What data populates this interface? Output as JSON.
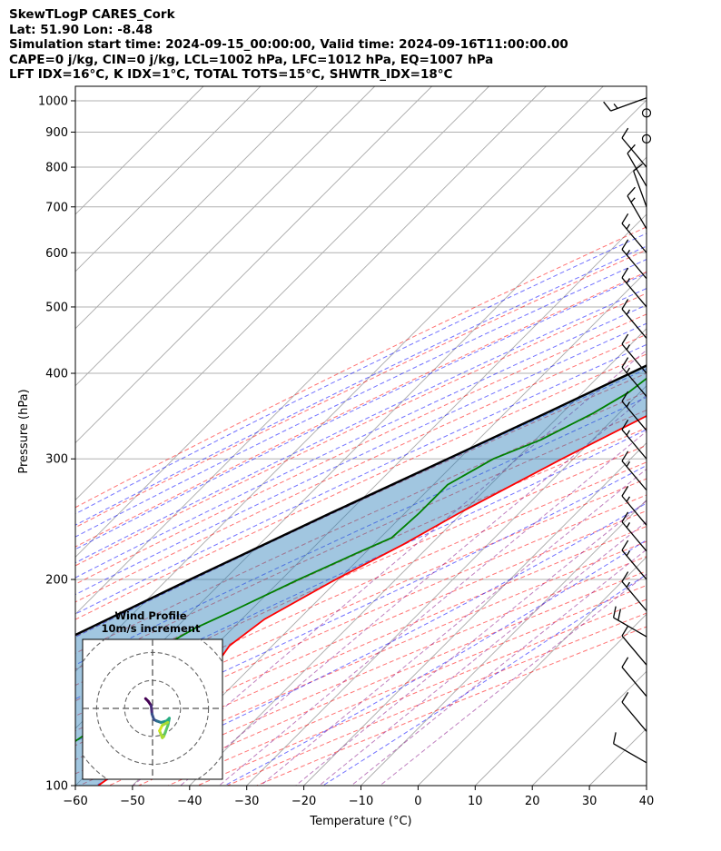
{
  "header": {
    "line1": "SkewTLogP CARES_Cork",
    "line2": "Lat: 51.90   Lon: -8.48",
    "line3": "Simulation start time: 2024-09-15_00:00:00, Valid time: 2024-09-16T11:00:00.00",
    "line4": "CAPE=0 j/kg, CIN=0 j/kg, LCL=1002 hPa, LFC=1012 hPa, EQ=1007 hPa",
    "line5": "LFT IDX=16°C, K IDX=1°C, TOTAL TOTS=15°C, SHWTR_IDX=18°C"
  },
  "chart_data": {
    "type": "skewt",
    "xlabel": "Temperature (°C)",
    "ylabel": "Pressure (hPa)",
    "xlim": [
      -60,
      40
    ],
    "ylim": [
      1050,
      100
    ],
    "x_ticks": [
      "−60",
      "−50",
      "−40",
      "−30",
      "−20",
      "−10",
      "0",
      "10",
      "20",
      "30",
      "40"
    ],
    "x_tick_values": [
      -60,
      -50,
      -40,
      -30,
      -20,
      -10,
      0,
      10,
      20,
      30,
      40
    ],
    "y_ticks": [
      "1000",
      "900",
      "800",
      "700",
      "600",
      "500",
      "400",
      "300",
      "200",
      "100"
    ],
    "y_tick_values": [
      1000,
      900,
      800,
      700,
      600,
      500,
      400,
      300,
      200,
      100
    ],
    "grid": true,
    "series": [
      {
        "role": "temperature",
        "color": "#ff0000",
        "points": [
          {
            "p": 1010,
            "t": 13.0
          },
          {
            "p": 1000,
            "t": 13.3
          },
          {
            "p": 975,
            "t": 14.8
          },
          {
            "p": 950,
            "t": 15.8
          },
          {
            "p": 925,
            "t": 16.6
          },
          {
            "p": 900,
            "t": 17.0
          },
          {
            "p": 850,
            "t": 17.2
          },
          {
            "p": 800,
            "t": 16.6
          },
          {
            "p": 750,
            "t": 15.0
          },
          {
            "p": 700,
            "t": 12.3
          },
          {
            "p": 650,
            "t": 8.8
          },
          {
            "p": 600,
            "t": 4.8
          },
          {
            "p": 550,
            "t": 0.5
          },
          {
            "p": 500,
            "t": -4.3
          },
          {
            "p": 450,
            "t": -10.0
          },
          {
            "p": 400,
            "t": -16.5
          },
          {
            "p": 350,
            "t": -24.2
          },
          {
            "p": 300,
            "t": -32.0
          },
          {
            "p": 250,
            "t": -40.5
          },
          {
            "p": 225,
            "t": -44.8
          },
          {
            "p": 200,
            "t": -50.5
          },
          {
            "p": 175,
            "t": -56.0
          },
          {
            "p": 160,
            "t": -57.5
          },
          {
            "p": 150,
            "t": -56.5
          },
          {
            "p": 140,
            "t": -58.0
          },
          {
            "p": 130,
            "t": -56.5
          },
          {
            "p": 120,
            "t": -55.0
          },
          {
            "p": 110,
            "t": -54.0
          },
          {
            "p": 100,
            "t": -56.0
          }
        ]
      },
      {
        "role": "dewpoint",
        "color": "#008000",
        "points": [
          {
            "p": 1010,
            "t": 12.5
          },
          {
            "p": 1000,
            "t": 10.5
          },
          {
            "p": 975,
            "t": 7.5
          },
          {
            "p": 950,
            "t": 5.8
          },
          {
            "p": 925,
            "t": 4.8
          },
          {
            "p": 900,
            "t": 1.0
          },
          {
            "p": 850,
            "t": -7.2
          },
          {
            "p": 800,
            "t": -6.0
          },
          {
            "p": 775,
            "t": 2.0
          },
          {
            "p": 750,
            "t": 9.0
          },
          {
            "p": 700,
            "t": 8.0
          },
          {
            "p": 670,
            "t": 7.5
          },
          {
            "p": 600,
            "t": -8.0
          },
          {
            "p": 560,
            "t": -15.0
          },
          {
            "p": 500,
            "t": -21.0
          },
          {
            "p": 450,
            "t": -26.5
          },
          {
            "p": 400,
            "t": -31.0
          },
          {
            "p": 375,
            "t": -32.0
          },
          {
            "p": 350,
            "t": -34.5
          },
          {
            "p": 320,
            "t": -39.0
          },
          {
            "p": 300,
            "t": -44.0
          },
          {
            "p": 275,
            "t": -47.5
          },
          {
            "p": 250,
            "t": -47.5
          },
          {
            "p": 230,
            "t": -48.0
          },
          {
            "p": 220,
            "t": -51.0
          },
          {
            "p": 200,
            "t": -57.0
          },
          {
            "p": 180,
            "t": -63.0
          },
          {
            "p": 170,
            "t": -66.5
          },
          {
            "p": 160,
            "t": -69.0
          },
          {
            "p": 150,
            "t": -69.0
          },
          {
            "p": 140,
            "t": -68.0
          },
          {
            "p": 130,
            "t": -67.0
          },
          {
            "p": 125,
            "t": -66.0
          },
          {
            "p": 115,
            "t": -68.0
          },
          {
            "p": 100,
            "t": -72.0
          }
        ]
      },
      {
        "role": "parcel",
        "color": "#000000",
        "points": [
          {
            "p": 1010,
            "t": 13.0
          },
          {
            "p": 1000,
            "t": 12.3
          },
          {
            "p": 950,
            "t": 10.0
          },
          {
            "p": 900,
            "t": 7.5
          },
          {
            "p": 850,
            "t": 4.8
          },
          {
            "p": 800,
            "t": 2.0
          },
          {
            "p": 750,
            "t": -1.2
          },
          {
            "p": 700,
            "t": -4.6
          },
          {
            "p": 650,
            "t": -8.4
          },
          {
            "p": 600,
            "t": -12.5
          },
          {
            "p": 550,
            "t": -17.2
          },
          {
            "p": 500,
            "t": -22.4
          },
          {
            "p": 450,
            "t": -28.3
          },
          {
            "p": 400,
            "t": -35.0
          },
          {
            "p": 350,
            "t": -42.8
          },
          {
            "p": 300,
            "t": -52.0
          },
          {
            "p": 250,
            "t": -63.0
          },
          {
            "p": 200,
            "t": -76.0
          },
          {
            "p": 150,
            "t": -92.0
          },
          {
            "p": 100,
            "t": -114.0
          }
        ]
      }
    ],
    "barbs": [
      {
        "p": 1010,
        "speed_kt": 15,
        "dir": 250
      },
      {
        "p": 960,
        "speed_kt": 0,
        "dir": 0
      },
      {
        "p": 880,
        "speed_kt": 0,
        "dir": 0
      },
      {
        "p": 800,
        "speed_kt": 10,
        "dir": 320
      },
      {
        "p": 750,
        "speed_kt": 10,
        "dir": 330
      },
      {
        "p": 700,
        "speed_kt": 10,
        "dir": 340
      },
      {
        "p": 650,
        "speed_kt": 15,
        "dir": 330
      },
      {
        "p": 600,
        "speed_kt": 15,
        "dir": 320
      },
      {
        "p": 550,
        "speed_kt": 15,
        "dir": 320
      },
      {
        "p": 500,
        "speed_kt": 15,
        "dir": 320
      },
      {
        "p": 450,
        "speed_kt": 15,
        "dir": 320
      },
      {
        "p": 400,
        "speed_kt": 15,
        "dir": 320
      },
      {
        "p": 370,
        "speed_kt": 15,
        "dir": 320
      },
      {
        "p": 330,
        "speed_kt": 15,
        "dir": 320
      },
      {
        "p": 300,
        "speed_kt": 15,
        "dir": 320
      },
      {
        "p": 270,
        "speed_kt": 15,
        "dir": 320
      },
      {
        "p": 240,
        "speed_kt": 15,
        "dir": 320
      },
      {
        "p": 220,
        "speed_kt": 15,
        "dir": 320
      },
      {
        "p": 200,
        "speed_kt": 15,
        "dir": 320
      },
      {
        "p": 180,
        "speed_kt": 15,
        "dir": 320
      },
      {
        "p": 165,
        "speed_kt": 20,
        "dir": 300
      },
      {
        "p": 150,
        "speed_kt": 10,
        "dir": 320
      },
      {
        "p": 135,
        "speed_kt": 10,
        "dir": 320
      },
      {
        "p": 120,
        "speed_kt": 10,
        "dir": 320
      },
      {
        "p": 108,
        "speed_kt": 10,
        "dir": 300
      }
    ],
    "hodograph": {
      "title_line1": "Wind Profile",
      "title_line2": "10m/s increment",
      "rings_ms": [
        10,
        20,
        30
      ],
      "range_ms": 25,
      "points": [
        {
          "u": -2.5,
          "v": 3.5
        },
        {
          "u": -1.5,
          "v": 2.5
        },
        {
          "u": -0.5,
          "v": 1.0
        },
        {
          "u": -0.2,
          "v": -2.0
        },
        {
          "u": 0.5,
          "v": -4.0
        },
        {
          "u": 1.5,
          "v": -4.5
        },
        {
          "u": 3.0,
          "v": -5.0
        },
        {
          "u": 5.0,
          "v": -4.5
        },
        {
          "u": 6.0,
          "v": -3.5
        },
        {
          "u": 5.5,
          "v": -6.0
        },
        {
          "u": 4.0,
          "v": -10.0
        },
        {
          "u": 3.5,
          "v": -10.5
        },
        {
          "u": 2.5,
          "v": -8.0
        },
        {
          "u": 3.5,
          "v": -6.0
        },
        {
          "u": 5.5,
          "v": -5.0
        }
      ]
    }
  }
}
